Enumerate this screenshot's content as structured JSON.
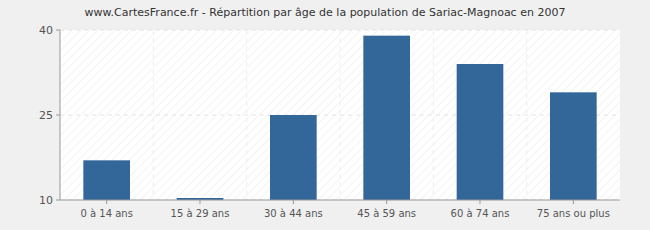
{
  "chart_data": {
    "type": "bar",
    "title": "www.CartesFrance.fr - Répartition par âge de la population de Sariac-Magnoac en 2007",
    "categories": [
      "0 à 14 ans",
      "15 à 29 ans",
      "30 à 44 ans",
      "45 à 59 ans",
      "60 à 74 ans",
      "75 ans ou plus"
    ],
    "values": [
      17,
      10,
      25,
      39,
      34,
      29
    ],
    "color": "#336699",
    "ylim": [
      10,
      40
    ],
    "yticks": [
      10,
      25,
      40
    ],
    "grid": true
  }
}
